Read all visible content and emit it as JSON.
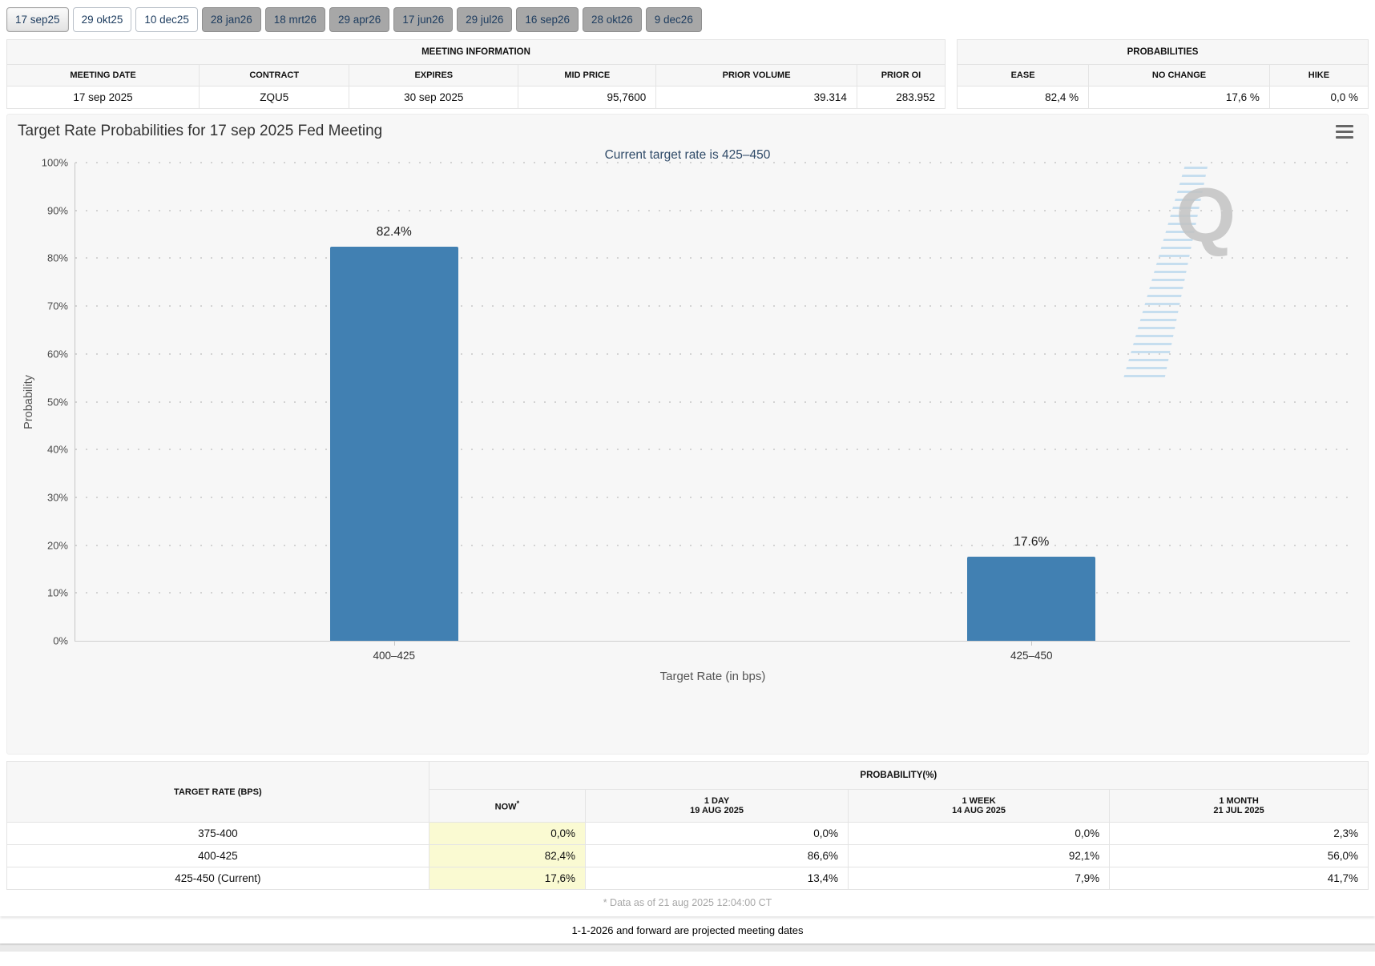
{
  "tabs": [
    {
      "label": "17 sep25",
      "state": "active"
    },
    {
      "label": "29 okt25",
      "state": "default"
    },
    {
      "label": "10 dec25",
      "state": "default"
    },
    {
      "label": "28 jan26",
      "state": "projected"
    },
    {
      "label": "18 mrt26",
      "state": "projected"
    },
    {
      "label": "29 apr26",
      "state": "projected"
    },
    {
      "label": "17 jun26",
      "state": "projected"
    },
    {
      "label": "29 jul26",
      "state": "projected"
    },
    {
      "label": "16 sep26",
      "state": "projected"
    },
    {
      "label": "28 okt26",
      "state": "projected"
    },
    {
      "label": "9 dec26",
      "state": "projected"
    }
  ],
  "meeting_information": {
    "title": "MEETING INFORMATION",
    "columns": [
      "MEETING DATE",
      "CONTRACT",
      "EXPIRES",
      "MID PRICE",
      "PRIOR VOLUME",
      "PRIOR OI"
    ],
    "row": {
      "meeting_date": "17 sep 2025",
      "contract": "ZQU5",
      "expires": "30 sep 2025",
      "mid_price": "95,7600",
      "prior_volume": "39.314",
      "prior_oi": "283.952"
    }
  },
  "probabilities_summary": {
    "title": "PROBABILITIES",
    "columns": [
      "EASE",
      "NO CHANGE",
      "HIKE"
    ],
    "row": {
      "ease": "82,4 %",
      "no_change": "17,6 %",
      "hike": "0,0 %"
    }
  },
  "chart_data": {
    "type": "bar",
    "title": "Target Rate Probabilities for 17 sep 2025 Fed Meeting",
    "subtitle": "Current target rate is 425–450",
    "categories": [
      "400–425",
      "425–450"
    ],
    "values": [
      82.4,
      17.6
    ],
    "value_labels": [
      "82.4%",
      "17.6%"
    ],
    "xlabel": "Target Rate (in bps)",
    "ylabel": "Probability",
    "ylim": [
      0,
      100
    ],
    "ytick_step": 10,
    "ytick_suffix": "%",
    "grid": "dotted-horizontal",
    "legend": "none",
    "bar_color": "#4180b2",
    "watermark": "Q"
  },
  "probability_table": {
    "col1_header": "TARGET RATE (BPS)",
    "group_header": "PROBABILITY(%)",
    "now_header": {
      "label": "NOW",
      "sup": "*"
    },
    "day_header": {
      "line1": "1 DAY",
      "line2": "19 AUG 2025"
    },
    "week_header": {
      "line1": "1 WEEK",
      "line2": "14 AUG 2025"
    },
    "month_header": {
      "line1": "1 MONTH",
      "line2": "21 JUL 2025"
    },
    "rows": [
      {
        "target_rate": "375-400",
        "now": "0,0%",
        "day": "0,0%",
        "week": "0,0%",
        "month": "2,3%"
      },
      {
        "target_rate": "400-425",
        "now": "82,4%",
        "day": "86,6%",
        "week": "92,1%",
        "month": "56,0%"
      },
      {
        "target_rate": "425-450 (Current)",
        "now": "17,6%",
        "day": "13,4%",
        "week": "7,9%",
        "month": "41,7%"
      }
    ],
    "footnote": "* Data as of 21 aug 2025 12:04:00 CT"
  },
  "footer": {
    "note": "1-1-2026 and forward are projected meeting dates"
  },
  "colors": {
    "bar": "#4180b2",
    "now_column_highlight": "#fafad2",
    "tab_text": "#1d3c5f",
    "projected_tab_bg": "#a7a7a7",
    "subtitle_text": "#2f4a68",
    "panel_bg": "#f7f7f7"
  }
}
